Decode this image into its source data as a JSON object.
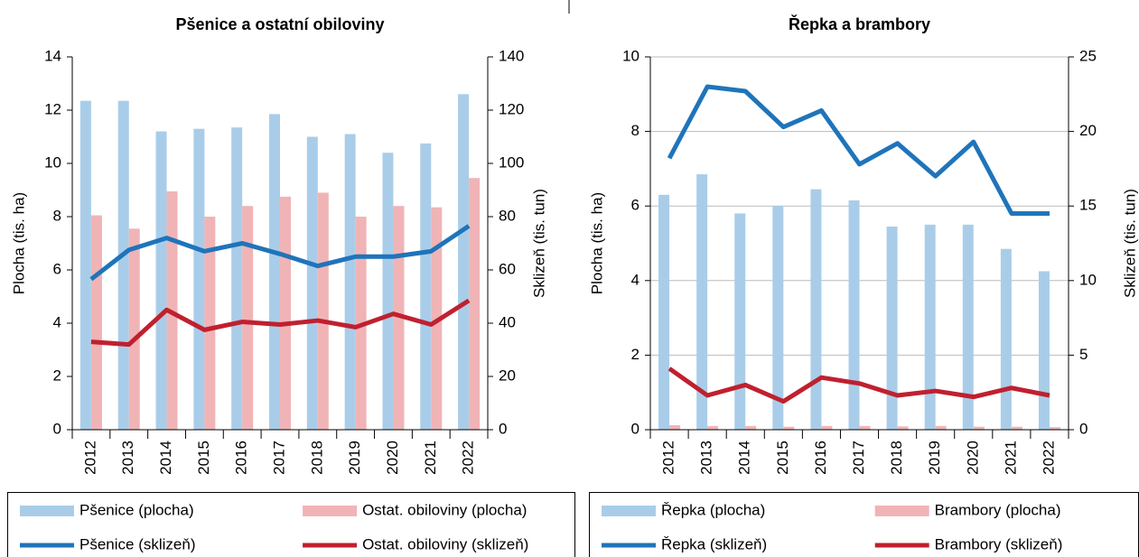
{
  "chart_data": [
    {
      "type": "bar",
      "title": "Pšenice a ostatní obiloviny",
      "y_label": "Plocha (tis. ha)",
      "y2_label": "Sklizeň (tis. tun)",
      "categories": [
        "2012",
        "2013",
        "2014",
        "2015",
        "2016",
        "2017",
        "2018",
        "2019",
        "2020",
        "2021",
        "2022"
      ],
      "ylim": [
        0,
        14
      ],
      "yticks": [
        0,
        2,
        4,
        6,
        8,
        10,
        12,
        14
      ],
      "y2lim": [
        0,
        140
      ],
      "y2ticks": [
        0,
        20,
        40,
        60,
        80,
        100,
        120,
        140
      ],
      "grid": false,
      "series": [
        {
          "name": "Pšenice (plocha)",
          "type": "bar",
          "color": "#a9cde9",
          "values": [
            12.35,
            12.35,
            11.2,
            11.3,
            11.35,
            11.85,
            11.0,
            11.1,
            10.4,
            10.75,
            12.6
          ]
        },
        {
          "name": "Ostat. obiloviny (plocha)",
          "type": "bar",
          "color": "#f0b4b6",
          "values": [
            8.05,
            7.55,
            8.95,
            8.0,
            8.4,
            8.75,
            8.9,
            8.0,
            8.4,
            8.35,
            9.45
          ]
        },
        {
          "name": "Pšenice (sklizeň)",
          "type": "line",
          "axis": "y2",
          "color": "#1f74ba",
          "values": [
            56.5,
            67.5,
            72,
            67,
            70,
            66,
            61.5,
            65,
            65,
            67,
            76.5
          ]
        },
        {
          "name": "Ostat. obiloviny (sklizeň)",
          "type": "line",
          "axis": "y2",
          "color": "#c0202f",
          "values": [
            33,
            32,
            45,
            37.5,
            40.5,
            39.5,
            41,
            38.5,
            43.5,
            39.5,
            48.5
          ]
        }
      ]
    },
    {
      "type": "bar",
      "title": "Řepka a brambory",
      "y_label": "Plocha (tis. ha)",
      "y2_label": "Sklizeň (tis. tun)",
      "categories": [
        "2012",
        "2013",
        "2014",
        "2015",
        "2016",
        "2017",
        "2018",
        "2019",
        "2020",
        "2021",
        "2022"
      ],
      "ylim": [
        0,
        10
      ],
      "yticks": [
        0,
        2,
        4,
        6,
        8,
        10
      ],
      "y2lim": [
        0,
        25
      ],
      "y2ticks": [
        0,
        5,
        10,
        15,
        20,
        25
      ],
      "grid": true,
      "series": [
        {
          "name": "Řepka (plocha)",
          "type": "bar",
          "color": "#a9cde9",
          "values": [
            6.3,
            6.85,
            5.8,
            6.0,
            6.45,
            6.15,
            5.45,
            5.5,
            5.5,
            4.85,
            4.25
          ]
        },
        {
          "name": "Brambory (plocha)",
          "type": "bar",
          "color": "#f0b4b6",
          "values": [
            0.12,
            0.1,
            0.1,
            0.08,
            0.1,
            0.1,
            0.09,
            0.1,
            0.08,
            0.08,
            0.07
          ]
        },
        {
          "name": "Řepka (sklizeň)",
          "type": "line",
          "axis": "y2",
          "color": "#1f74ba",
          "values": [
            18.2,
            23,
            22.7,
            20.3,
            21.4,
            17.8,
            19.2,
            17,
            19.3,
            14.5,
            14.5
          ]
        },
        {
          "name": "Brambory (sklizeň)",
          "type": "line",
          "axis": "y2",
          "color": "#c0202f",
          "values": [
            4.1,
            2.3,
            3.0,
            1.9,
            3.5,
            3.1,
            2.3,
            2.6,
            2.2,
            2.8,
            2.3
          ]
        }
      ]
    }
  ]
}
